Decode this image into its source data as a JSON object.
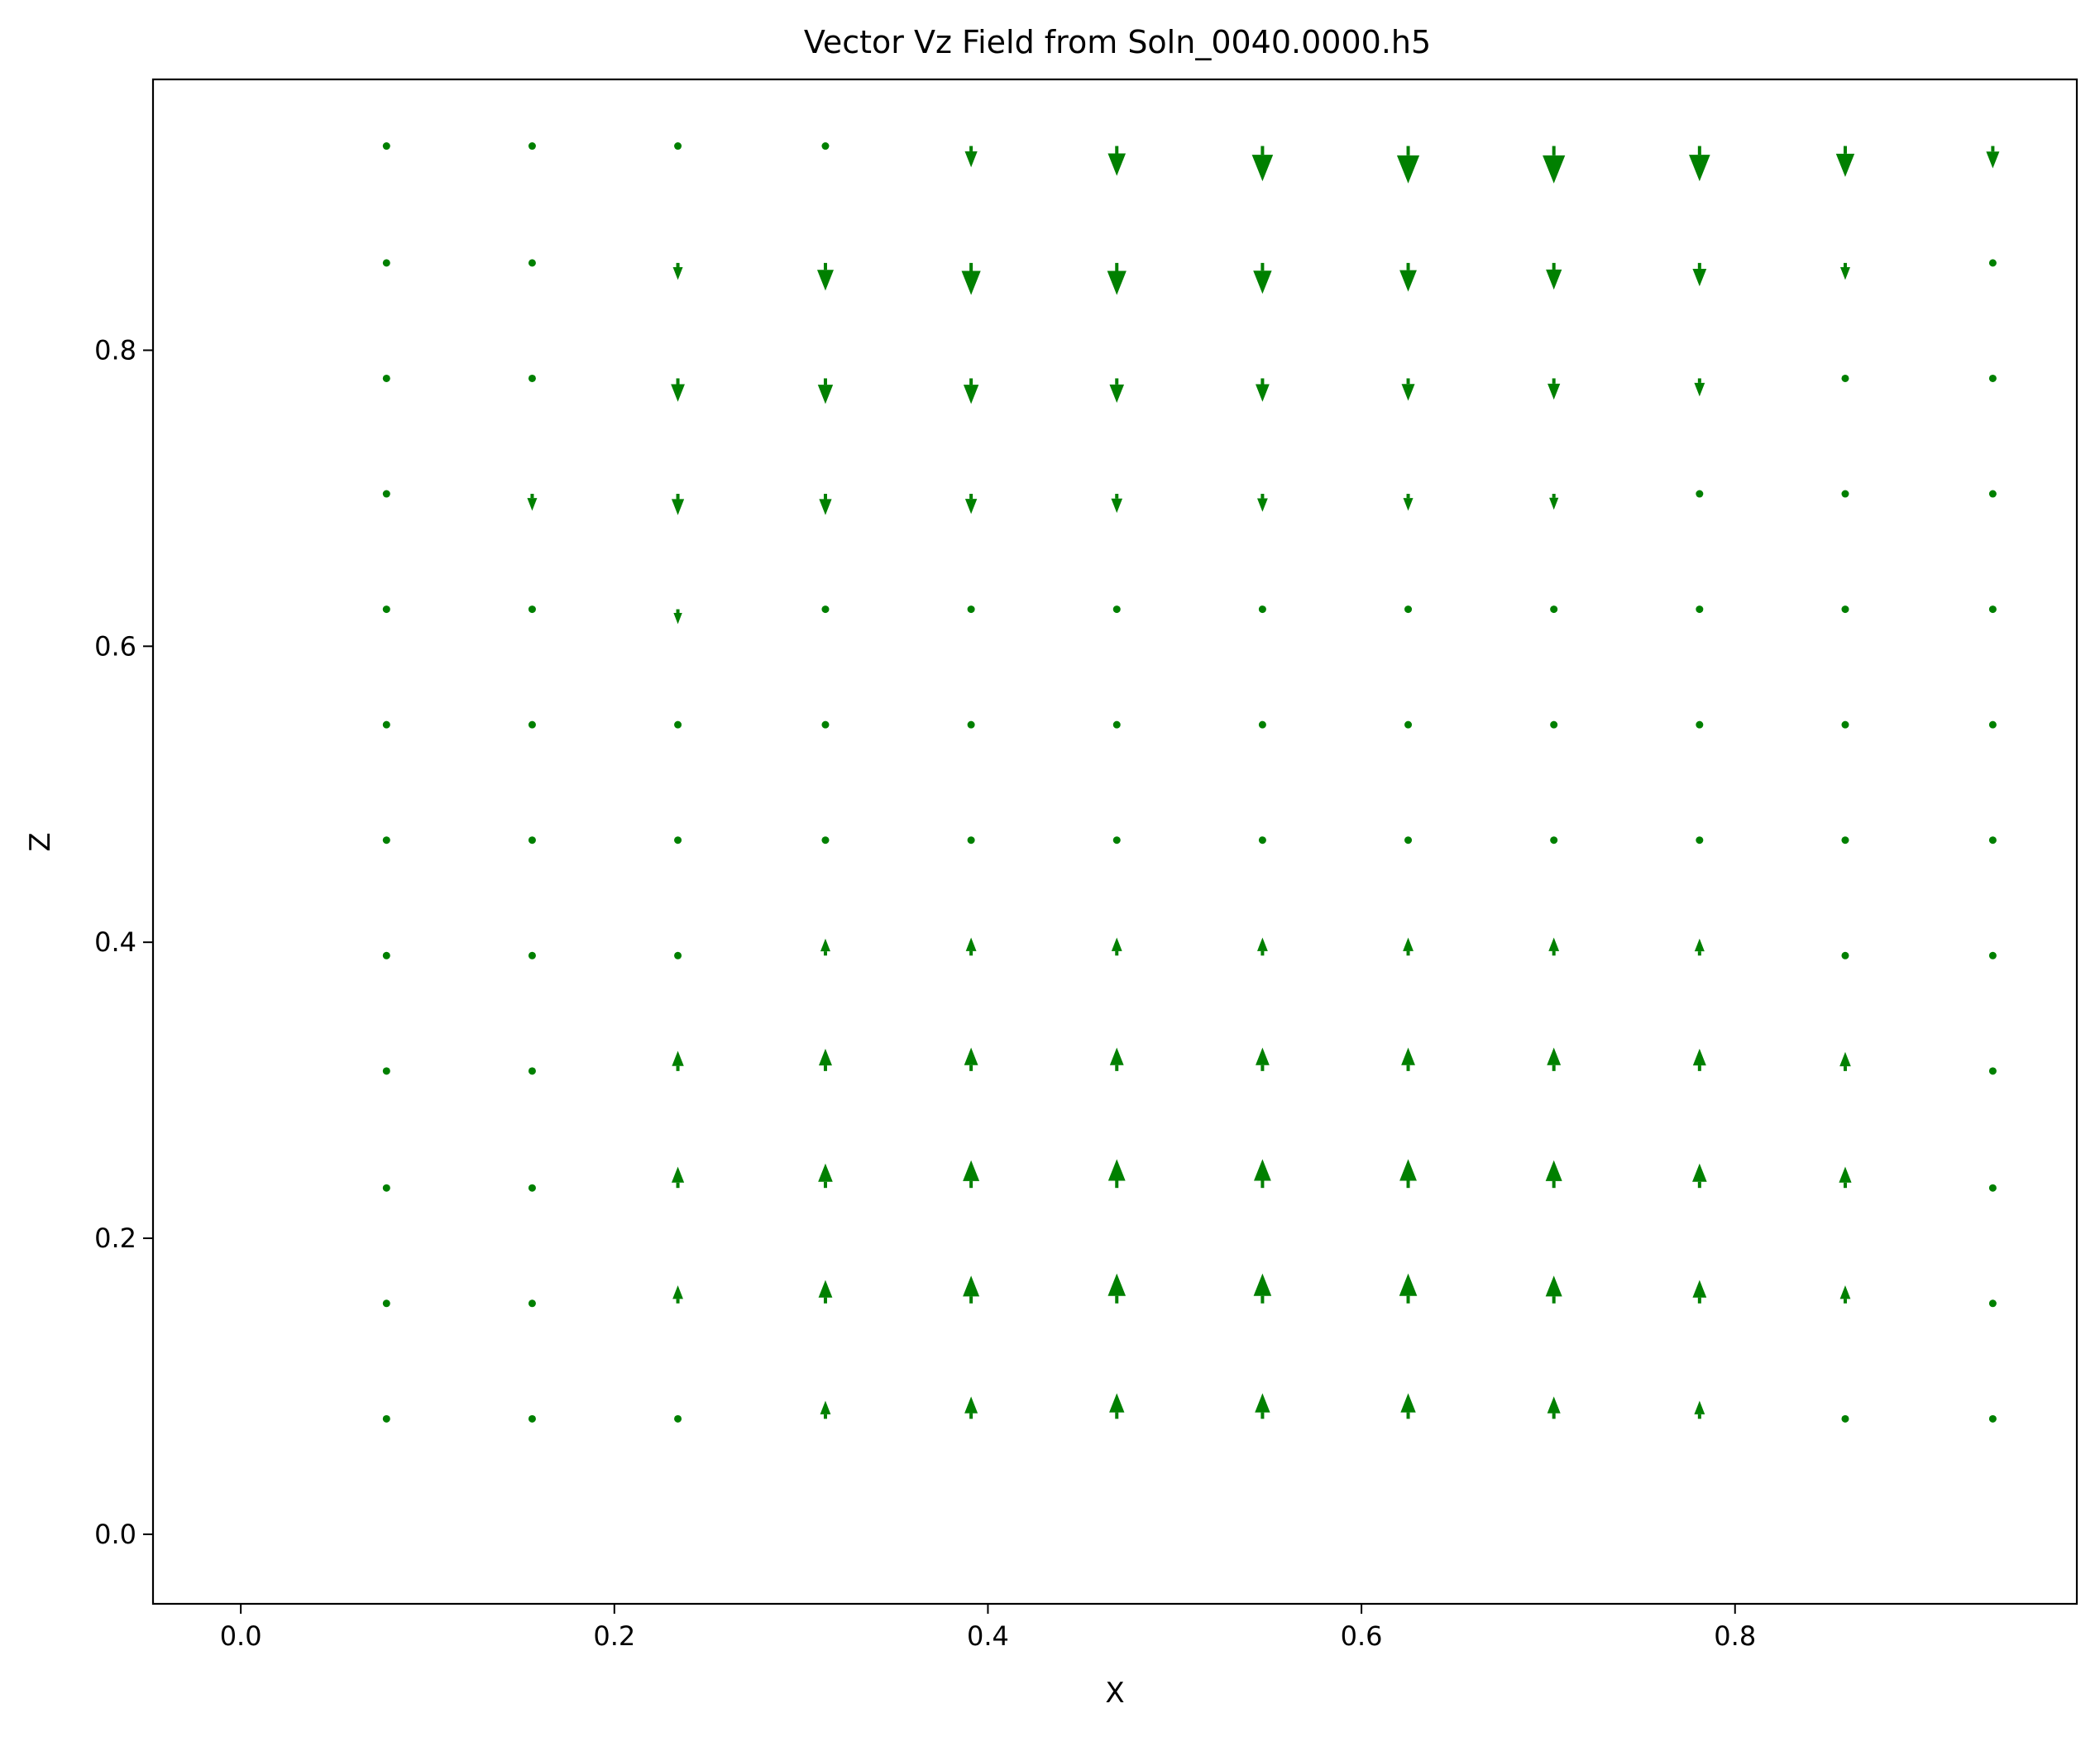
{
  "chart_data": {
    "type": "quiver",
    "title": "Vector Vz Field from Soln_0040.0000.h5",
    "xlabel": "X",
    "ylabel": "Z",
    "xlim": [
      -0.047,
      0.983
    ],
    "ylim": [
      -0.047,
      0.983
    ],
    "x_ticks": [
      0.0,
      0.2,
      0.4,
      0.6,
      0.8
    ],
    "y_ticks": [
      0.0,
      0.2,
      0.4,
      0.6,
      0.8
    ],
    "x_tick_labels": [
      "0.0",
      "0.2",
      "0.4",
      "0.6",
      "0.8"
    ],
    "y_tick_labels": [
      "0.0",
      "0.2",
      "0.4",
      "0.6",
      "0.8"
    ],
    "grid": false,
    "color": "#008000",
    "x": [
      0.078,
      0.156,
      0.234,
      0.313,
      0.391,
      0.469,
      0.547,
      0.625,
      0.703,
      0.781,
      0.859,
      0.938
    ],
    "z": [
      0.078,
      0.156,
      0.234,
      0.313,
      0.391,
      0.469,
      0.547,
      0.625,
      0.703,
      0.781,
      0.859,
      0.938
    ],
    "vz_rows_by_z": [
      [
        0,
        0,
        0,
        0.3,
        0.5,
        0.65,
        0.65,
        0.65,
        0.5,
        0.3,
        0,
        0
      ],
      [
        0,
        0,
        0.3,
        0.55,
        0.75,
        0.85,
        0.85,
        0.85,
        0.75,
        0.55,
        0.3,
        0
      ],
      [
        0,
        0,
        0.45,
        0.6,
        0.75,
        0.8,
        0.8,
        0.8,
        0.75,
        0.6,
        0.45,
        0
      ],
      [
        0,
        0,
        0.4,
        0.5,
        0.55,
        0.55,
        0.55,
        0.55,
        0.55,
        0.5,
        0.35,
        0
      ],
      [
        0,
        0,
        0,
        0.25,
        0.3,
        0.3,
        0.3,
        0.3,
        0.3,
        0.25,
        0,
        0
      ],
      [
        0,
        0,
        0,
        0,
        0,
        0,
        0,
        0,
        0,
        0,
        0,
        0
      ],
      [
        0,
        0,
        0,
        0,
        0,
        0,
        0,
        0,
        0,
        0,
        0,
        0
      ],
      [
        0,
        0,
        -0.15,
        0,
        0,
        0,
        0,
        0,
        0,
        0,
        0,
        0
      ],
      [
        0,
        -0.25,
        -0.45,
        -0.45,
        -0.4,
        -0.35,
        -0.3,
        -0.25,
        -0.2,
        0,
        0,
        0
      ],
      [
        0,
        0,
        -0.55,
        -0.65,
        -0.65,
        -0.6,
        -0.55,
        -0.5,
        -0.45,
        -0.3,
        0,
        0
      ],
      [
        0,
        0,
        -0.25,
        -0.75,
        -0.95,
        -0.95,
        -0.9,
        -0.8,
        -0.7,
        -0.55,
        -0.25,
        0
      ],
      [
        0,
        0,
        0,
        0,
        -0.45,
        -0.85,
        -1.1,
        -1.2,
        -1.2,
        -1.1,
        -0.9,
        -0.5
      ]
    ]
  }
}
